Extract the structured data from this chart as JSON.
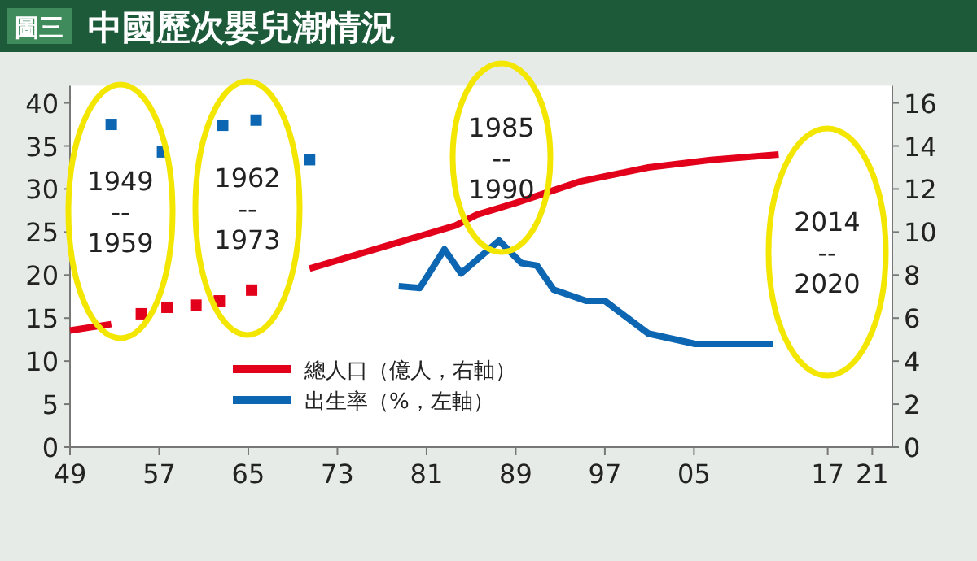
{
  "chart_data": {
    "type": "line",
    "title": "中國歷次嬰兒潮情況",
    "annotations": [
      "圖三",
      "1949\n--\n1959",
      "1962\n--\n1973",
      "1985\n--\n1990",
      "2014\n--\n2020"
    ],
    "series": [
      {
        "name": "總人口（億人，右軸）",
        "axis": "y2",
        "color": "#e2001a",
        "x": [
          1949,
          1952.7,
          1960,
          1970.5,
          1983.6,
          1985.5,
          1989,
          1994.8,
          2000.9,
          2006.5,
          2012.6
        ],
        "values": [
          5.42,
          5.72,
          null,
          8.3,
          10.3,
          10.8,
          11.35,
          12.35,
          13.0,
          13.35,
          13.6
        ]
      },
      {
        "type": "scatter",
        "axis": "y2",
        "marker": "square",
        "color": "#e2001a",
        "x": [
          1955.4,
          1957.7,
          1960.3,
          1962.4,
          1965.3
        ],
        "values": [
          6.2,
          6.5,
          6.6,
          6.8,
          7.3
        ]
      },
      {
        "type": "scatter",
        "marker": "square",
        "color": "#0d66b2",
        "x": [
          1952.7,
          1957.3,
          1962.7,
          1965.7,
          1970.5
        ],
        "values": [
          37.5,
          34.3,
          37.4,
          38.0,
          33.4
        ]
      },
      {
        "name": "出生率（%，左軸）",
        "color": "#0d66b2",
        "x": [
          1978.5,
          1980.4,
          1982.6,
          1984.1,
          1987.5,
          1989.5,
          1990.9,
          1992.4,
          1995.3,
          1997,
          2000.9,
          2005.1,
          2012.1
        ],
        "values": [
          18.7,
          18.5,
          23.0,
          20.2,
          24.0,
          21.4,
          21.1,
          18.3,
          17.0,
          17.0,
          13.2,
          12.0,
          12.0
        ]
      }
    ],
    "xlim": [
      1949,
      2022.8
    ],
    "xticks": [
      {
        "value": 1949,
        "label": "49"
      },
      {
        "value": 1957,
        "label": "57"
      },
      {
        "value": 1965,
        "label": "65"
      },
      {
        "value": 1973,
        "label": "73"
      },
      {
        "value": 1981,
        "label": "81"
      },
      {
        "value": 1989,
        "label": "89"
      },
      {
        "value": 1997,
        "label": "97"
      },
      {
        "value": 2005,
        "label": "05"
      },
      {
        "value": 2017,
        "label": "17"
      },
      {
        "value": 2021,
        "label": "21"
      }
    ],
    "ylim": [
      0,
      42
    ],
    "yticks": [
      0,
      5,
      10,
      15,
      20,
      25,
      30,
      35,
      40
    ],
    "y2lim": [
      0,
      16.8
    ],
    "y2ticks": [
      0,
      2,
      4,
      6,
      8,
      10,
      12,
      14,
      16
    ],
    "legend": "bottom",
    "grid": false
  }
}
